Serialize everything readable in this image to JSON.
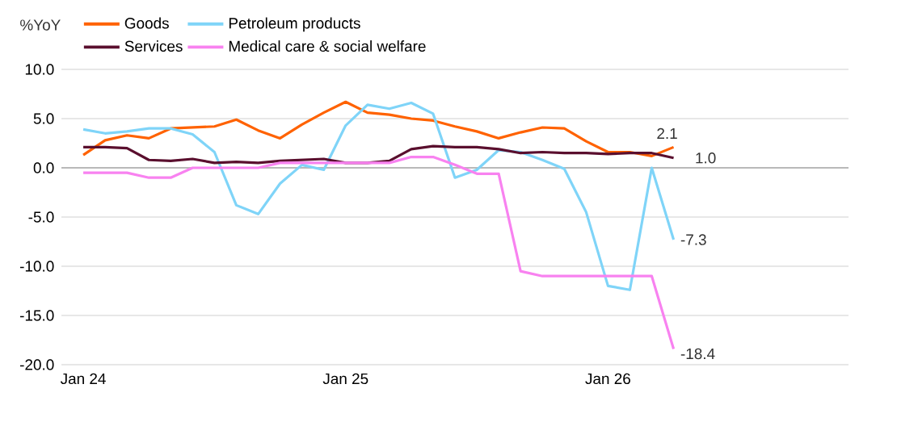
{
  "chart_data": {
    "type": "line",
    "ylabel": "%YoY",
    "x": [
      "2024-01",
      "2024-02",
      "2024-03",
      "2024-04",
      "2024-05",
      "2024-06",
      "2024-07",
      "2024-08",
      "2024-09",
      "2024-10",
      "2024-11",
      "2024-12",
      "2025-01",
      "2025-02",
      "2025-03",
      "2025-04",
      "2025-05",
      "2025-06",
      "2025-07",
      "2025-08",
      "2025-09",
      "2025-10",
      "2025-11",
      "2025-12",
      "2026-01",
      "2026-02",
      "2026-03",
      "2026-04"
    ],
    "series": [
      {
        "name": "Goods",
        "color": "#ff6200",
        "values": [
          1.3,
          2.8,
          3.3,
          3.0,
          4.0,
          4.1,
          4.2,
          4.9,
          3.8,
          3.0,
          4.4,
          5.6,
          6.7,
          5.6,
          5.4,
          5.0,
          4.8,
          4.2,
          3.7,
          3.0,
          3.6,
          4.1,
          4.0,
          2.7,
          1.6,
          1.6,
          1.2,
          2.1
        ],
        "value_labels": [
          null,
          null,
          null,
          null,
          null,
          null,
          null,
          null,
          null,
          null,
          null,
          null,
          null,
          null,
          null,
          null,
          null,
          null,
          null,
          null,
          null,
          null,
          null,
          null,
          null,
          null,
          null,
          "2.1"
        ]
      },
      {
        "name": "Petroleum products",
        "color": "#7fd4f8",
        "values": [
          3.9,
          3.5,
          3.7,
          4.0,
          4.0,
          3.4,
          1.6,
          -3.8,
          -4.7,
          -1.6,
          0.3,
          -0.2,
          4.3,
          6.4,
          6.0,
          6.6,
          5.5,
          -1.0,
          -0.2,
          1.8,
          1.6,
          0.8,
          -0.1,
          -4.5,
          -12.0,
          -12.4,
          0.0,
          -7.3
        ],
        "value_labels": [
          null,
          null,
          null,
          null,
          null,
          null,
          null,
          null,
          null,
          null,
          null,
          null,
          null,
          null,
          null,
          null,
          null,
          null,
          null,
          null,
          null,
          null,
          null,
          null,
          null,
          null,
          null,
          "-7.3"
        ]
      },
      {
        "name": "Services",
        "color": "#5a0f2e",
        "values": [
          2.1,
          2.1,
          2.0,
          0.8,
          0.7,
          0.9,
          0.5,
          0.6,
          0.5,
          0.7,
          0.8,
          0.9,
          0.5,
          0.5,
          0.7,
          1.9,
          2.2,
          2.1,
          2.1,
          1.9,
          1.5,
          1.6,
          1.5,
          1.5,
          1.4,
          1.5,
          1.5,
          1.0
        ],
        "value_labels": [
          null,
          null,
          null,
          null,
          null,
          null,
          null,
          null,
          null,
          null,
          null,
          null,
          null,
          null,
          null,
          null,
          null,
          null,
          null,
          null,
          null,
          null,
          null,
          null,
          null,
          null,
          null,
          "1.0"
        ]
      },
      {
        "name": "Medical care & social welfare",
        "color": "#f882f0",
        "values": [
          -0.5,
          -0.5,
          -0.5,
          -1.0,
          -1.0,
          0.0,
          0.0,
          0.0,
          0.0,
          0.5,
          0.5,
          0.5,
          0.5,
          0.5,
          0.5,
          1.1,
          1.1,
          0.3,
          -0.6,
          -0.6,
          -10.5,
          -11.0,
          -11.0,
          -11.0,
          -11.0,
          -11.0,
          -11.0,
          -18.4
        ],
        "value_labels": [
          null,
          null,
          null,
          null,
          null,
          null,
          null,
          null,
          null,
          null,
          null,
          null,
          null,
          null,
          null,
          null,
          null,
          null,
          null,
          null,
          null,
          null,
          null,
          null,
          null,
          null,
          null,
          "-18.4"
        ]
      }
    ],
    "xlim": [
      "2023-12",
      "2026-12"
    ],
    "xticks": [
      {
        "value": "2024-01",
        "label": "Jan 24"
      },
      {
        "value": "2025-01",
        "label": "Jan 25"
      },
      {
        "value": "2026-01",
        "label": "Jan 26"
      }
    ],
    "ylim": [
      -20,
      10
    ],
    "yticks": [
      {
        "value": -20,
        "label": "-20.0"
      },
      {
        "value": -15,
        "label": "-15.0"
      },
      {
        "value": -10,
        "label": "-10.0"
      },
      {
        "value": -5,
        "label": "-5.0"
      },
      {
        "value": 0,
        "label": "0.0"
      },
      {
        "value": 5,
        "label": "5.0"
      },
      {
        "value": 10,
        "label": "10.0"
      }
    ],
    "grid": "y",
    "legend": "top",
    "marker": "none",
    "line_style": "solid"
  }
}
